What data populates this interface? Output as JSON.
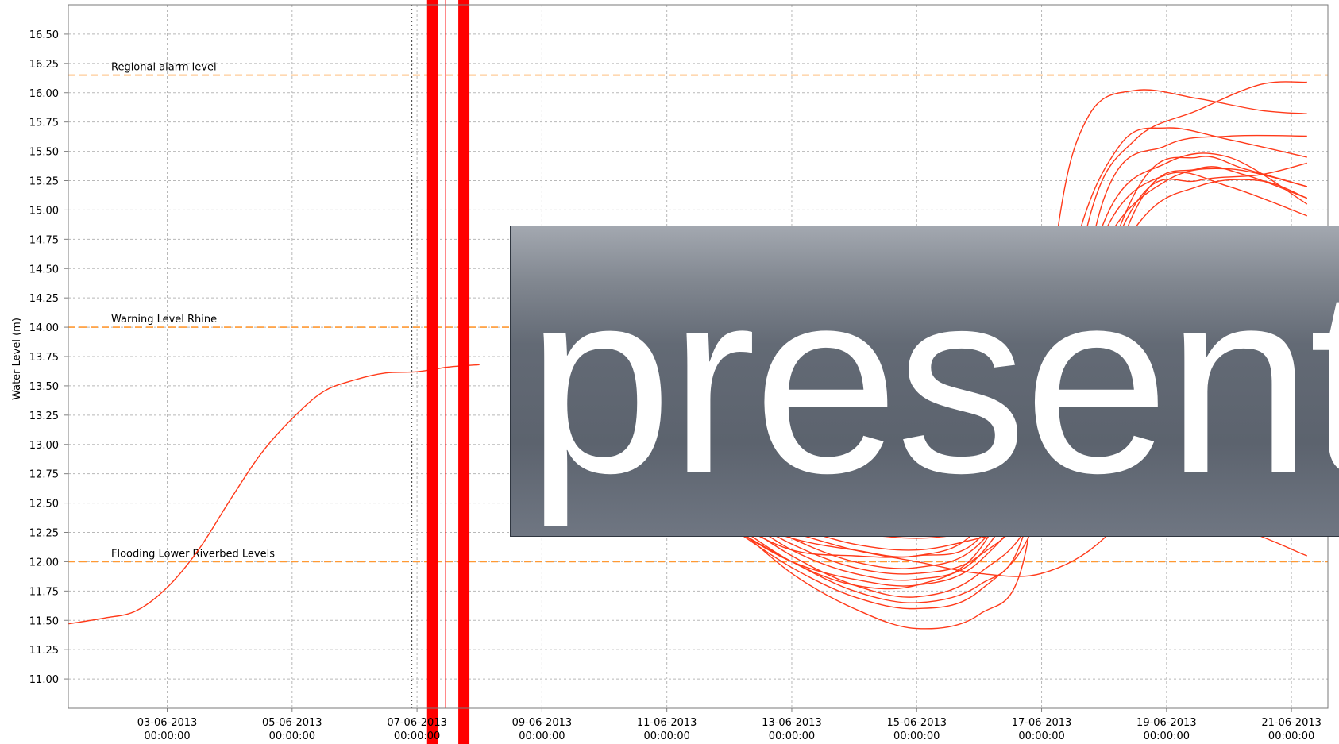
{
  "chart_data": {
    "type": "line",
    "title": "",
    "ylabel": "Water Level (m)",
    "xlabel": "",
    "ylim": [
      10.75,
      16.75
    ],
    "y_ticks": [
      "16.50",
      "16.25",
      "16.00",
      "15.75",
      "15.50",
      "15.25",
      "15.00",
      "14.75",
      "14.50",
      "14.25",
      "14.00",
      "13.75",
      "13.50",
      "13.25",
      "13.00",
      "12.75",
      "12.50",
      "12.25",
      "12.00",
      "11.75",
      "11.50",
      "11.25",
      "11.00"
    ],
    "x_range": [
      "2013-06-01T10:00",
      "2013-06-21T14:00"
    ],
    "x_ticks": [
      {
        "date": "03-06-2013",
        "time": "00:00:00"
      },
      {
        "date": "05-06-2013",
        "time": "00:00:00"
      },
      {
        "date": "07-06-2013",
        "time": "00:00:00"
      },
      {
        "date": "09-06-2013",
        "time": "00:00:00"
      },
      {
        "date": "11-06-2013",
        "time": "00:00:00"
      },
      {
        "date": "13-06-2013",
        "time": "00:00:00"
      },
      {
        "date": "15-06-2013",
        "time": "00:00:00"
      },
      {
        "date": "17-06-2013",
        "time": "00:00:00"
      },
      {
        "date": "19-06-2013",
        "time": "00:00:00"
      },
      {
        "date": "21-06-2013",
        "time": "00:00:00"
      }
    ],
    "grid": true,
    "reference_lines": [
      {
        "label": "Regional alarm level",
        "value": 16.15
      },
      {
        "label": "Warning Level Rhine",
        "value": 14.0
      },
      {
        "label": "Flooding Lower Riverbed Levels",
        "value": 12.0
      }
    ],
    "series": [
      {
        "points": [
          [
            "2013-06-01T10:00",
            11.47
          ],
          [
            "2013-06-02T00:00",
            11.52
          ],
          [
            "2013-06-02T12:00",
            11.58
          ],
          [
            "2013-06-03T00:00",
            11.78
          ],
          [
            "2013-06-03T12:00",
            12.1
          ],
          [
            "2013-06-04T00:00",
            12.52
          ],
          [
            "2013-06-04T12:00",
            12.92
          ],
          [
            "2013-06-05T00:00",
            13.22
          ],
          [
            "2013-06-05T12:00",
            13.45
          ],
          [
            "2013-06-06T00:00",
            13.55
          ],
          [
            "2013-06-06T12:00",
            13.61
          ],
          [
            "2013-06-07T00:00",
            13.62
          ],
          [
            "2013-06-07T12:00",
            13.66
          ],
          [
            "2013-06-08T00:00",
            13.68
          ]
        ]
      },
      {
        "points": [
          [
            "2013-06-12T00:00",
            12.35
          ],
          [
            "2013-06-13T00:00",
            11.9
          ],
          [
            "2013-06-14T00:00",
            11.6
          ],
          [
            "2013-06-15T00:00",
            11.43
          ],
          [
            "2013-06-16T00:00",
            11.55
          ],
          [
            "2013-06-16T18:00",
            12.1
          ],
          [
            "2013-06-17T06:00",
            14.8
          ],
          [
            "2013-06-17T18:00",
            15.8
          ],
          [
            "2013-06-18T12:00",
            16.02
          ],
          [
            "2013-06-19T12:00",
            15.95
          ],
          [
            "2013-06-20T12:00",
            15.85
          ],
          [
            "2013-06-21T06:00",
            15.82
          ]
        ]
      },
      {
        "points": [
          [
            "2013-06-12T00:00",
            12.3
          ],
          [
            "2013-06-13T00:00",
            11.95
          ],
          [
            "2013-06-14T00:00",
            11.7
          ],
          [
            "2013-06-15T00:00",
            11.6
          ],
          [
            "2013-06-16T00:00",
            11.75
          ],
          [
            "2013-06-17T00:00",
            12.5
          ],
          [
            "2013-06-17T18:00",
            14.9
          ],
          [
            "2013-06-18T12:00",
            15.6
          ],
          [
            "2013-06-19T12:00",
            15.85
          ],
          [
            "2013-06-20T12:00",
            16.07
          ],
          [
            "2013-06-21T06:00",
            16.09
          ]
        ]
      },
      {
        "points": [
          [
            "2013-06-12T00:00",
            12.4
          ],
          [
            "2013-06-13T00:00",
            12.05
          ],
          [
            "2013-06-14T00:00",
            11.8
          ],
          [
            "2013-06-15T00:00",
            11.7
          ],
          [
            "2013-06-16T00:00",
            11.9
          ],
          [
            "2013-06-17T00:00",
            12.6
          ],
          [
            "2013-06-18T00:00",
            15.1
          ],
          [
            "2013-06-19T00:00",
            15.55
          ],
          [
            "2013-06-20T00:00",
            15.63
          ],
          [
            "2013-06-21T06:00",
            15.63
          ]
        ]
      },
      {
        "points": [
          [
            "2013-06-12T00:00",
            12.3
          ],
          [
            "2013-06-13T00:00",
            12.0
          ],
          [
            "2013-06-14T00:00",
            11.85
          ],
          [
            "2013-06-15T00:00",
            11.8
          ],
          [
            "2013-06-16T00:00",
            12.0
          ],
          [
            "2013-06-17T00:00",
            12.8
          ],
          [
            "2013-06-18T00:00",
            14.9
          ],
          [
            "2013-06-19T00:00",
            15.4
          ],
          [
            "2013-06-20T00:00",
            15.45
          ],
          [
            "2013-06-21T06:00",
            15.05
          ]
        ]
      },
      {
        "points": [
          [
            "2013-06-12T00:00",
            12.45
          ],
          [
            "2013-06-13T00:00",
            12.15
          ],
          [
            "2013-06-14T00:00",
            11.95
          ],
          [
            "2013-06-15T00:00",
            11.9
          ],
          [
            "2013-06-16T00:00",
            12.05
          ],
          [
            "2013-06-17T00:00",
            12.7
          ],
          [
            "2013-06-18T12:00",
            15.0
          ],
          [
            "2013-06-19T12:00",
            15.35
          ],
          [
            "2013-06-20T06:00",
            15.3
          ],
          [
            "2013-06-21T06:00",
            15.1
          ]
        ]
      },
      {
        "points": [
          [
            "2013-06-12T00:00",
            12.5
          ],
          [
            "2013-06-13T00:00",
            12.2
          ],
          [
            "2013-06-14T00:00",
            12.0
          ],
          [
            "2013-06-15T00:00",
            11.95
          ],
          [
            "2013-06-16T00:00",
            12.15
          ],
          [
            "2013-06-17T00:00",
            13.0
          ],
          [
            "2013-06-18T12:00",
            15.15
          ],
          [
            "2013-06-19T12:00",
            15.45
          ],
          [
            "2013-06-20T06:00",
            15.35
          ],
          [
            "2013-06-21T06:00",
            15.2
          ]
        ]
      },
      {
        "points": [
          [
            "2013-06-12T00:00",
            12.35
          ],
          [
            "2013-06-13T00:00",
            12.1
          ],
          [
            "2013-06-14T00:00",
            12.05
          ],
          [
            "2013-06-15T00:00",
            12.05
          ],
          [
            "2013-06-16T00:00",
            12.2
          ],
          [
            "2013-06-17T00:00",
            13.2
          ],
          [
            "2013-06-18T12:00",
            15.05
          ],
          [
            "2013-06-19T12:00",
            15.25
          ],
          [
            "2013-06-20T12:00",
            15.3
          ],
          [
            "2013-06-21T06:00",
            15.4
          ]
        ]
      },
      {
        "points": [
          [
            "2013-06-12T00:00",
            12.4
          ],
          [
            "2013-06-13T00:00",
            12.2
          ],
          [
            "2013-06-14T00:00",
            12.1
          ],
          [
            "2013-06-15T00:00",
            12.05
          ],
          [
            "2013-06-16T00:00",
            12.3
          ],
          [
            "2013-06-17T00:00",
            13.4
          ],
          [
            "2013-06-18T12:00",
            14.85
          ],
          [
            "2013-06-19T12:00",
            15.2
          ],
          [
            "2013-06-20T12:00",
            15.25
          ],
          [
            "2013-06-21T06:00",
            15.1
          ]
        ]
      },
      {
        "points": [
          [
            "2013-06-12T00:00",
            12.3
          ],
          [
            "2013-06-13T00:00",
            12.0
          ],
          [
            "2013-06-14T00:00",
            11.75
          ],
          [
            "2013-06-15T00:00",
            11.65
          ],
          [
            "2013-06-16T00:00",
            11.8
          ],
          [
            "2013-06-16T18:00",
            12.3
          ],
          [
            "2013-06-17T12:00",
            14.6
          ],
          [
            "2013-06-18T06:00",
            15.55
          ],
          [
            "2013-06-19T00:00",
            15.7
          ],
          [
            "2013-06-20T00:00",
            15.6
          ],
          [
            "2013-06-21T06:00",
            15.45
          ]
        ]
      },
      {
        "points": [
          [
            "2013-06-12T00:00",
            12.45
          ],
          [
            "2013-06-13T00:00",
            12.3
          ],
          [
            "2013-06-14T00:00",
            12.15
          ],
          [
            "2013-06-15T00:00",
            12.1
          ],
          [
            "2013-06-16T00:00",
            12.2
          ],
          [
            "2013-06-17T00:00",
            12.35
          ],
          [
            "2013-06-18T00:00",
            12.6
          ],
          [
            "2013-06-19T00:00",
            13.4
          ],
          [
            "2013-06-20T00:00",
            14.5
          ],
          [
            "2013-06-21T06:00",
            14.8
          ]
        ]
      },
      {
        "points": [
          [
            "2013-06-12T00:00",
            12.5
          ],
          [
            "2013-06-13T00:00",
            12.35
          ],
          [
            "2013-06-14T00:00",
            12.25
          ],
          [
            "2013-06-15T00:00",
            12.2
          ],
          [
            "2013-06-16T00:00",
            12.25
          ],
          [
            "2013-06-17T00:00",
            12.3
          ],
          [
            "2013-06-18T00:00",
            12.25
          ],
          [
            "2013-06-19T00:00",
            12.25
          ],
          [
            "2013-06-20T00:00",
            12.3
          ],
          [
            "2013-06-21T06:00",
            12.05
          ]
        ]
      },
      {
        "points": [
          [
            "2013-06-12T00:00",
            12.4
          ],
          [
            "2013-06-13T00:00",
            12.25
          ],
          [
            "2013-06-14T00:00",
            12.1
          ],
          [
            "2013-06-15T00:00",
            12.0
          ],
          [
            "2013-06-16T00:00",
            11.9
          ],
          [
            "2013-06-17T00:00",
            11.9
          ],
          [
            "2013-06-18T00:00",
            12.2
          ],
          [
            "2013-06-19T00:00",
            12.9
          ],
          [
            "2013-06-20T00:00",
            14.0
          ],
          [
            "2013-06-21T06:00",
            14.6
          ]
        ]
      },
      {
        "points": [
          [
            "2013-06-12T00:00",
            12.35
          ],
          [
            "2013-06-13T00:00",
            12.0
          ],
          [
            "2013-06-14T00:00",
            11.8
          ],
          [
            "2013-06-15T00:00",
            11.8
          ],
          [
            "2013-06-16T00:00",
            12.1
          ],
          [
            "2013-06-17T00:00",
            13.2
          ],
          [
            "2013-06-18T00:00",
            14.7
          ],
          [
            "2013-06-19T00:00",
            15.25
          ],
          [
            "2013-06-20T00:00",
            15.35
          ],
          [
            "2013-06-21T06:00",
            15.2
          ]
        ]
      },
      {
        "points": [
          [
            "2013-06-12T00:00",
            12.45
          ],
          [
            "2013-06-13T00:00",
            12.1
          ],
          [
            "2013-06-14T00:00",
            11.9
          ],
          [
            "2013-06-15T00:00",
            11.85
          ],
          [
            "2013-06-16T00:00",
            12.05
          ],
          [
            "2013-06-17T00:00",
            13.0
          ],
          [
            "2013-06-18T00:00",
            14.8
          ],
          [
            "2013-06-19T00:00",
            15.3
          ],
          [
            "2013-06-20T00:00",
            15.2
          ],
          [
            "2013-06-21T06:00",
            14.95
          ]
        ]
      }
    ]
  },
  "overlay": {
    "text": "present"
  },
  "colors": {
    "series": "#ff3a1a",
    "reference": "#ff9933",
    "grid": "#b8b8b8",
    "marker": "#ff0000"
  }
}
